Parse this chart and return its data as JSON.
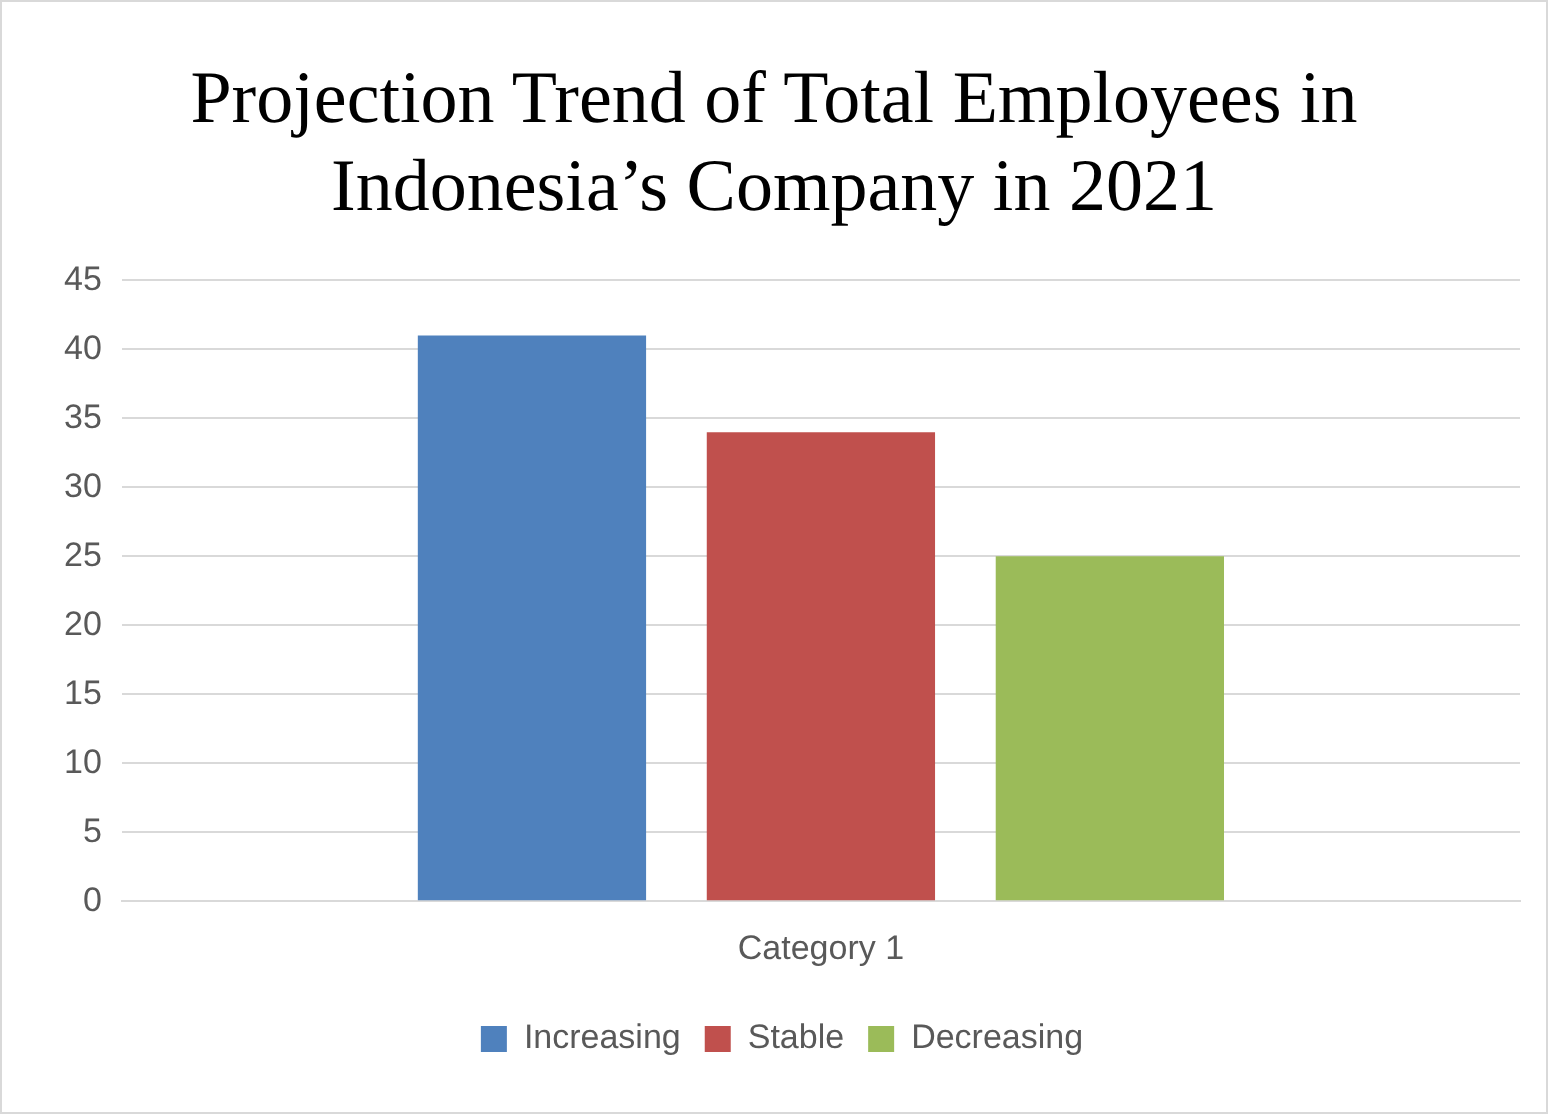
{
  "chart_data": {
    "type": "bar",
    "title": "Projection Trend of Total Employees in Indonesia’s Company in 2021",
    "categories": [
      "Category 1"
    ],
    "series": [
      {
        "name": "Increasing",
        "color": "#4f81bd",
        "values": [
          41
        ]
      },
      {
        "name": "Stable",
        "color": "#c0504d",
        "values": [
          34
        ]
      },
      {
        "name": "Decreasing",
        "color": "#9bbb59",
        "values": [
          25
        ]
      }
    ],
    "ylim": [
      0,
      45
    ],
    "yticks": [
      0,
      5,
      10,
      15,
      20,
      25,
      30,
      35,
      40,
      45
    ],
    "grid": "y",
    "legend": "bottom"
  }
}
